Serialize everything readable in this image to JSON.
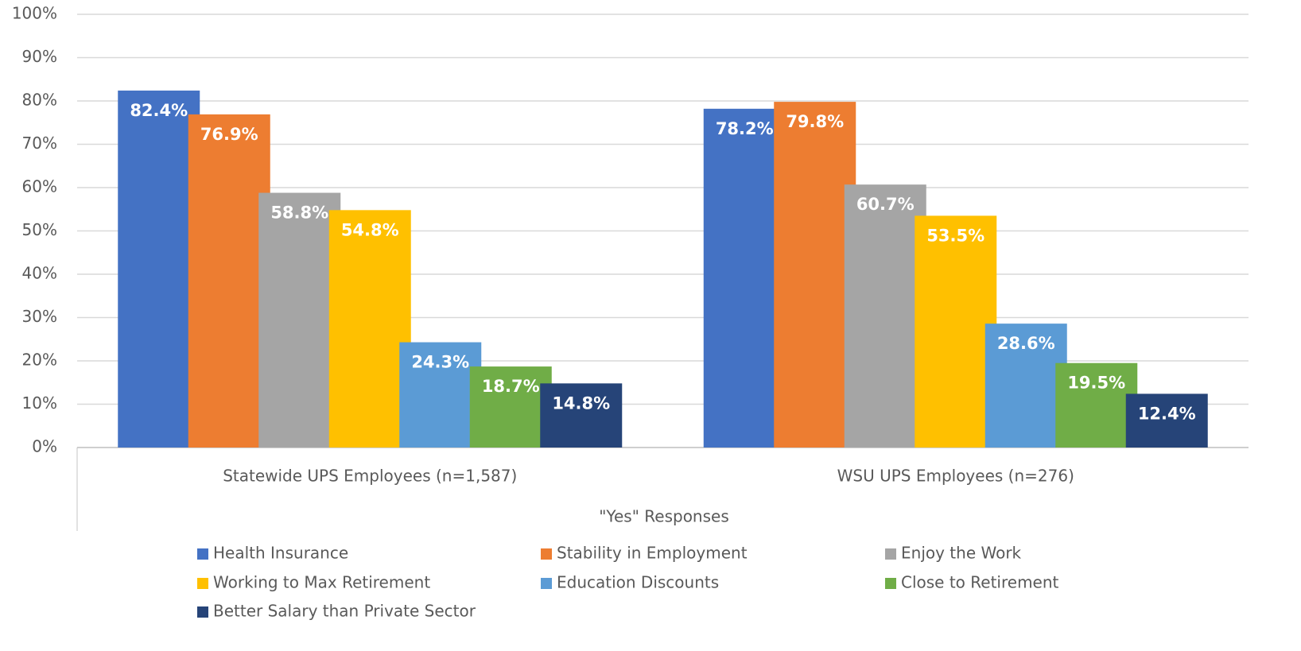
{
  "chart_data": {
    "type": "bar",
    "categories": [
      "Statewide UPS Employees (n=1,587)",
      "WSU UPS Employees (n=276)"
    ],
    "x_label": "\"Yes\" Responses",
    "series": [
      {
        "name": "Health Insurance",
        "color": "#4472c4",
        "values": [
          82.4,
          78.2
        ],
        "value_labels": [
          "82.4%",
          "78.2%"
        ]
      },
      {
        "name": "Stability in Employment",
        "color": "#ed7d31",
        "values": [
          76.9,
          79.8
        ],
        "value_labels": [
          "76.9%",
          "79.8%"
        ]
      },
      {
        "name": "Enjoy the Work",
        "color": "#a5a5a5",
        "values": [
          58.8,
          60.7
        ],
        "value_labels": [
          "58.8%",
          "60.7%"
        ]
      },
      {
        "name": "Working to Max Retirement",
        "color": "#ffc000",
        "values": [
          54.8,
          53.5
        ],
        "value_labels": [
          "54.8%",
          "53.5%"
        ]
      },
      {
        "name": "Education Discounts",
        "color": "#5b9bd5",
        "values": [
          24.3,
          28.6
        ],
        "value_labels": [
          "24.3%",
          "28.6%"
        ]
      },
      {
        "name": "Close to Retirement",
        "color": "#70ad47",
        "values": [
          18.7,
          19.5
        ],
        "value_labels": [
          "18.7%",
          "19.5%"
        ]
      },
      {
        "name": "Better Salary than Private Sector",
        "color": "#264478",
        "values": [
          14.8,
          12.4
        ],
        "value_labels": [
          "14.8%",
          "12.4%"
        ]
      }
    ],
    "ylim": [
      0,
      100
    ],
    "yticks": [
      {
        "value": 0,
        "label": "0%"
      },
      {
        "value": 10,
        "label": "10%"
      },
      {
        "value": 20,
        "label": "20%"
      },
      {
        "value": 30,
        "label": "30%"
      },
      {
        "value": 40,
        "label": "40%"
      },
      {
        "value": 50,
        "label": "50%"
      },
      {
        "value": 60,
        "label": "60%"
      },
      {
        "value": 70,
        "label": "70%"
      },
      {
        "value": 80,
        "label": "80%"
      },
      {
        "value": 90,
        "label": "90%"
      },
      {
        "value": 100,
        "label": "100%"
      }
    ],
    "grid": true,
    "legend": "bottom"
  }
}
